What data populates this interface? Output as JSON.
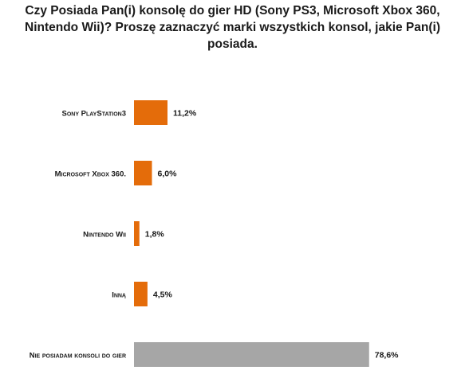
{
  "chart_data": {
    "type": "bar",
    "orientation": "horizontal",
    "title": "Czy Posiada Pan(i) konsolę do gier HD (Sony PS3, Microsoft Xbox 360, Nintendo Wii)? Proszę zaznaczyć marki wszystkich konsol, jakie Pan(i) posiada.",
    "categories": [
      "Sony PlayStation3",
      "Microsoft Xbox 360.",
      "Nintendo Wii",
      "Inną",
      "Nie posiadam konsoli do gier"
    ],
    "values": [
      11.2,
      6.0,
      1.8,
      4.5,
      78.6
    ],
    "value_labels": [
      "11,2%",
      "6,0%",
      "1,8%",
      "4,5%",
      "78,6%"
    ],
    "bar_colors": [
      "#e46c0a",
      "#e46c0a",
      "#e46c0a",
      "#e46c0a",
      "#a6a6a6"
    ],
    "xlim": [
      0,
      100
    ],
    "xlabel": "",
    "ylabel": "",
    "grid": false,
    "legend": "none"
  }
}
